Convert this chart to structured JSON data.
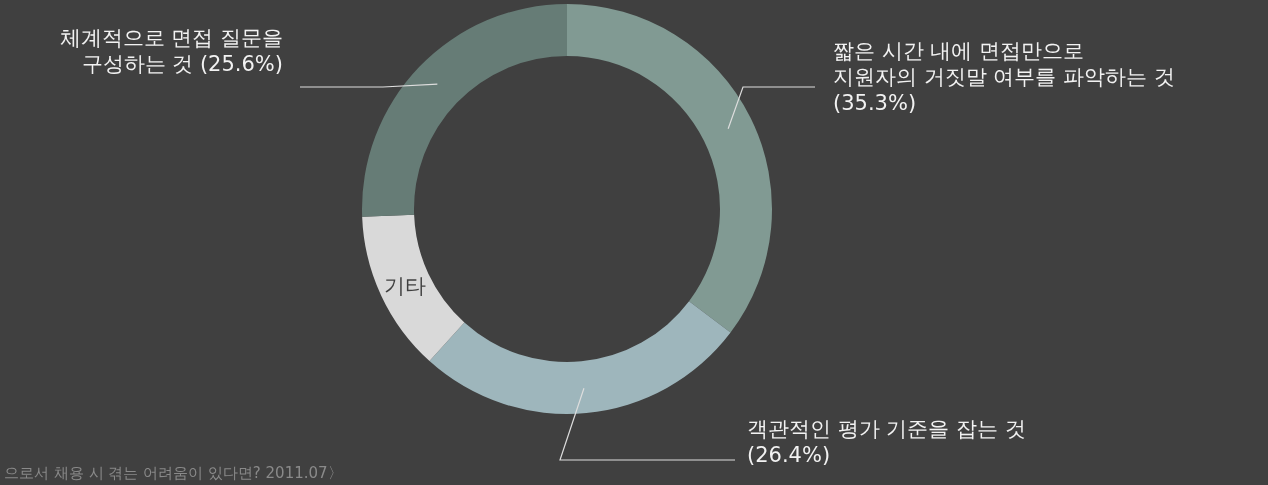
{
  "chart_data": {
    "type": "donut",
    "categories": [
      "짧은 시간 내에 면접만으로\n지원자의 거짓말 여부를 파악하는 것\n(35.3%)",
      "객관적인 평가 기준을 잡는 것\n(26.4%)",
      "기타",
      "체계적으로 면접 질문을\n구성하는 것 (25.6%)"
    ],
    "values": [
      35.3,
      26.4,
      12.7,
      25.6
    ],
    "colors": [
      "#819a93",
      "#9eb6bc",
      "#d9d9d9",
      "#667c76"
    ],
    "annotations": [
      "으로서 채용 시 겪는 어려움이 있다면? 2011.07〉"
    ]
  }
}
